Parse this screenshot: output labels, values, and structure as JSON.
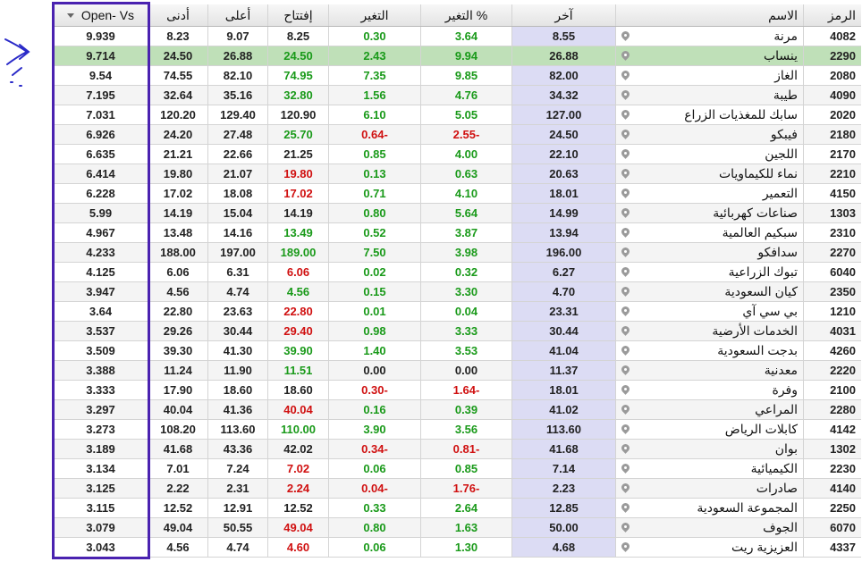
{
  "headers": {
    "open_vs": "Open- Vs",
    "low": "أدنى",
    "high": "أعلى",
    "open": "إفتتاح",
    "change": "التغير",
    "change_pct": "التغير %",
    "last": "آخر",
    "name": "الاسم",
    "symbol": "الرمز"
  },
  "colors": {
    "up": "#1a9a1a",
    "down": "#d01010",
    "highlight_box": "#4a22b0",
    "selected_row": "#bfe0b8"
  },
  "rows": [
    {
      "ov": "9.939",
      "low": "8.23",
      "high": "9.07",
      "open": "8.25",
      "open_c": "black",
      "chg": "0.30",
      "chg_c": "green",
      "pct": "3.64",
      "pct_c": "green",
      "last": "8.55",
      "name": "مرنة",
      "sym": "4082"
    },
    {
      "ov": "9.714",
      "low": "24.50",
      "high": "26.88",
      "open": "24.50",
      "open_c": "green",
      "chg": "2.43",
      "chg_c": "green",
      "pct": "9.94",
      "pct_c": "green",
      "last": "26.88",
      "name": "ينساب",
      "sym": "2290",
      "selected": true
    },
    {
      "ov": "9.54",
      "low": "74.55",
      "high": "82.10",
      "open": "74.95",
      "open_c": "green",
      "chg": "7.35",
      "chg_c": "green",
      "pct": "9.85",
      "pct_c": "green",
      "last": "82.00",
      "name": "الغاز",
      "sym": "2080"
    },
    {
      "ov": "7.195",
      "low": "32.64",
      "high": "35.16",
      "open": "32.80",
      "open_c": "green",
      "chg": "1.56",
      "chg_c": "green",
      "pct": "4.76",
      "pct_c": "green",
      "last": "34.32",
      "name": "طيبة",
      "sym": "4090"
    },
    {
      "ov": "7.031",
      "low": "120.20",
      "high": "129.40",
      "open": "120.90",
      "open_c": "black",
      "chg": "6.10",
      "chg_c": "green",
      "pct": "5.05",
      "pct_c": "green",
      "last": "127.00",
      "name": "سابك للمغذيات الزراع",
      "sym": "2020"
    },
    {
      "ov": "6.926",
      "low": "24.20",
      "high": "27.48",
      "open": "25.70",
      "open_c": "green",
      "chg": "0.64-",
      "chg_c": "red",
      "pct": "2.55-",
      "pct_c": "red",
      "last": "24.50",
      "name": "فيبكو",
      "sym": "2180"
    },
    {
      "ov": "6.635",
      "low": "21.21",
      "high": "22.66",
      "open": "21.25",
      "open_c": "black",
      "chg": "0.85",
      "chg_c": "green",
      "pct": "4.00",
      "pct_c": "green",
      "last": "22.10",
      "name": "اللجين",
      "sym": "2170"
    },
    {
      "ov": "6.414",
      "low": "19.80",
      "high": "21.07",
      "open": "19.80",
      "open_c": "red",
      "chg": "0.13",
      "chg_c": "green",
      "pct": "0.63",
      "pct_c": "green",
      "last": "20.63",
      "name": "نماء للكيماويات",
      "sym": "2210"
    },
    {
      "ov": "6.228",
      "low": "17.02",
      "high": "18.08",
      "open": "17.02",
      "open_c": "red",
      "chg": "0.71",
      "chg_c": "green",
      "pct": "4.10",
      "pct_c": "green",
      "last": "18.01",
      "name": "التعمير",
      "sym": "4150"
    },
    {
      "ov": "5.99",
      "low": "14.19",
      "high": "15.04",
      "open": "14.19",
      "open_c": "black",
      "chg": "0.80",
      "chg_c": "green",
      "pct": "5.64",
      "pct_c": "green",
      "last": "14.99",
      "name": "صناعات كهربائية",
      "sym": "1303"
    },
    {
      "ov": "4.967",
      "low": "13.48",
      "high": "14.16",
      "open": "13.49",
      "open_c": "green",
      "chg": "0.52",
      "chg_c": "green",
      "pct": "3.87",
      "pct_c": "green",
      "last": "13.94",
      "name": "سبكيم العالمية",
      "sym": "2310"
    },
    {
      "ov": "4.233",
      "low": "188.00",
      "high": "197.00",
      "open": "189.00",
      "open_c": "green",
      "chg": "7.50",
      "chg_c": "green",
      "pct": "3.98",
      "pct_c": "green",
      "last": "196.00",
      "name": "سدافكو",
      "sym": "2270"
    },
    {
      "ov": "4.125",
      "low": "6.06",
      "high": "6.31",
      "open": "6.06",
      "open_c": "red",
      "chg": "0.02",
      "chg_c": "green",
      "pct": "0.32",
      "pct_c": "green",
      "last": "6.27",
      "name": "تبوك الزراعية",
      "sym": "6040"
    },
    {
      "ov": "3.947",
      "low": "4.56",
      "high": "4.74",
      "open": "4.56",
      "open_c": "green",
      "chg": "0.15",
      "chg_c": "green",
      "pct": "3.30",
      "pct_c": "green",
      "last": "4.70",
      "name": "كيان السعودية",
      "sym": "2350"
    },
    {
      "ov": "3.64",
      "low": "22.80",
      "high": "23.63",
      "open": "22.80",
      "open_c": "red",
      "chg": "0.01",
      "chg_c": "green",
      "pct": "0.04",
      "pct_c": "green",
      "last": "23.31",
      "name": "بي سي آي",
      "sym": "1210"
    },
    {
      "ov": "3.537",
      "low": "29.26",
      "high": "30.44",
      "open": "29.40",
      "open_c": "red",
      "chg": "0.98",
      "chg_c": "green",
      "pct": "3.33",
      "pct_c": "green",
      "last": "30.44",
      "name": "الخدمات الأرضية",
      "sym": "4031"
    },
    {
      "ov": "3.509",
      "low": "39.30",
      "high": "41.30",
      "open": "39.90",
      "open_c": "green",
      "chg": "1.40",
      "chg_c": "green",
      "pct": "3.53",
      "pct_c": "green",
      "last": "41.04",
      "name": "بدجت السعودية",
      "sym": "4260"
    },
    {
      "ov": "3.388",
      "low": "11.24",
      "high": "11.90",
      "open": "11.51",
      "open_c": "green",
      "chg": "0.00",
      "chg_c": "black",
      "pct": "0.00",
      "pct_c": "black",
      "last": "11.37",
      "name": "معدنية",
      "sym": "2220"
    },
    {
      "ov": "3.333",
      "low": "17.90",
      "high": "18.60",
      "open": "18.60",
      "open_c": "black",
      "chg": "0.30-",
      "chg_c": "red",
      "pct": "1.64-",
      "pct_c": "red",
      "last": "18.01",
      "name": "وفرة",
      "sym": "2100"
    },
    {
      "ov": "3.297",
      "low": "40.04",
      "high": "41.36",
      "open": "40.04",
      "open_c": "red",
      "chg": "0.16",
      "chg_c": "green",
      "pct": "0.39",
      "pct_c": "green",
      "last": "41.02",
      "name": "المراعي",
      "sym": "2280"
    },
    {
      "ov": "3.273",
      "low": "108.20",
      "high": "113.60",
      "open": "110.00",
      "open_c": "green",
      "chg": "3.90",
      "chg_c": "green",
      "pct": "3.56",
      "pct_c": "green",
      "last": "113.60",
      "name": "كابلات الرياض",
      "sym": "4142"
    },
    {
      "ov": "3.189",
      "low": "41.68",
      "high": "43.36",
      "open": "42.02",
      "open_c": "black",
      "chg": "0.34-",
      "chg_c": "red",
      "pct": "0.81-",
      "pct_c": "red",
      "last": "41.68",
      "name": "بوان",
      "sym": "1302"
    },
    {
      "ov": "3.134",
      "low": "7.01",
      "high": "7.24",
      "open": "7.02",
      "open_c": "red",
      "chg": "0.06",
      "chg_c": "green",
      "pct": "0.85",
      "pct_c": "green",
      "last": "7.14",
      "name": "الكيميائية",
      "sym": "2230"
    },
    {
      "ov": "3.125",
      "low": "2.22",
      "high": "2.31",
      "open": "2.24",
      "open_c": "red",
      "chg": "0.04-",
      "chg_c": "red",
      "pct": "1.76-",
      "pct_c": "red",
      "last": "2.23",
      "name": "صادرات",
      "sym": "4140"
    },
    {
      "ov": "3.115",
      "low": "12.52",
      "high": "12.91",
      "open": "12.52",
      "open_c": "black",
      "chg": "0.33",
      "chg_c": "green",
      "pct": "2.64",
      "pct_c": "green",
      "last": "12.85",
      "name": "المجموعة السعودية",
      "sym": "2250"
    },
    {
      "ov": "3.079",
      "low": "49.04",
      "high": "50.55",
      "open": "49.04",
      "open_c": "red",
      "chg": "0.80",
      "chg_c": "green",
      "pct": "1.63",
      "pct_c": "green",
      "last": "50.00",
      "name": "الجوف",
      "sym": "6070"
    },
    {
      "ov": "3.043",
      "low": "4.56",
      "high": "4.74",
      "open": "4.60",
      "open_c": "red",
      "chg": "0.06",
      "chg_c": "green",
      "pct": "1.30",
      "pct_c": "green",
      "last": "4.68",
      "name": "العزيزية ريت",
      "sym": "4337"
    }
  ]
}
